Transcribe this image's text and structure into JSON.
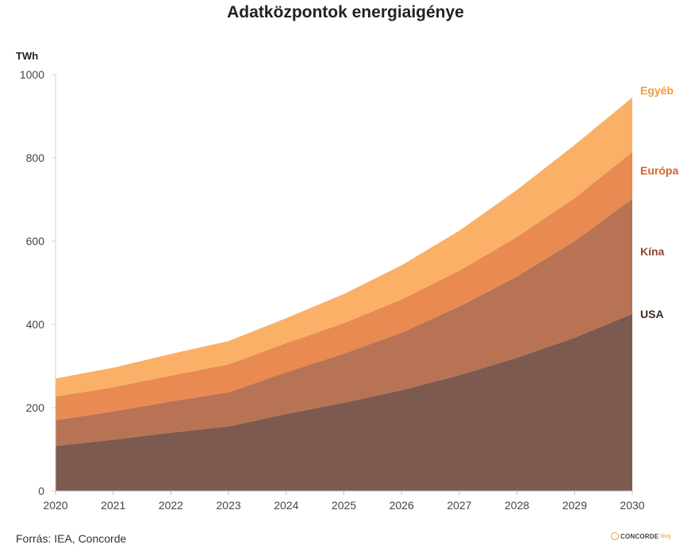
{
  "chart_data": {
    "type": "area",
    "stacked": true,
    "title": "Adatközpontok energiaigénye",
    "ylabel": "TWh",
    "xlabel": "",
    "ylim": [
      0,
      1000
    ],
    "yticks": [
      0,
      200,
      400,
      600,
      800,
      1000
    ],
    "x": [
      2020,
      2021,
      2022,
      2023,
      2024,
      2025,
      2026,
      2027,
      2028,
      2029,
      2030
    ],
    "grid": false,
    "legend": "right, labels at series ends",
    "series": [
      {
        "name": "USA",
        "color": "#7d5a4f",
        "label_color": "#3d2a22",
        "values": [
          108,
          123,
          140,
          155,
          185,
          212,
          242,
          278,
          320,
          368,
          425
        ]
      },
      {
        "name": "Kína",
        "color": "#b87355",
        "label_color": "#8c4a2f",
        "values": [
          62,
          68,
          75,
          82,
          100,
          118,
          138,
          165,
          195,
          232,
          277
        ]
      },
      {
        "name": "Európa",
        "color": "#e98a52",
        "label_color": "#d7622a",
        "values": [
          57,
          58,
          62,
          67,
          70,
          73,
          80,
          86,
          95,
          103,
          112
        ]
      },
      {
        "name": "Egyéb",
        "color": "#fbb068",
        "label_color": "#f49a3a",
        "values": [
          43,
          47,
          52,
          56,
          60,
          70,
          82,
          96,
          113,
          128,
          131
        ]
      }
    ]
  },
  "footer": {
    "source": "Forrás: IEA, Concorde",
    "logo_brand": "CONCORDE",
    "logo_sub": "blog"
  }
}
